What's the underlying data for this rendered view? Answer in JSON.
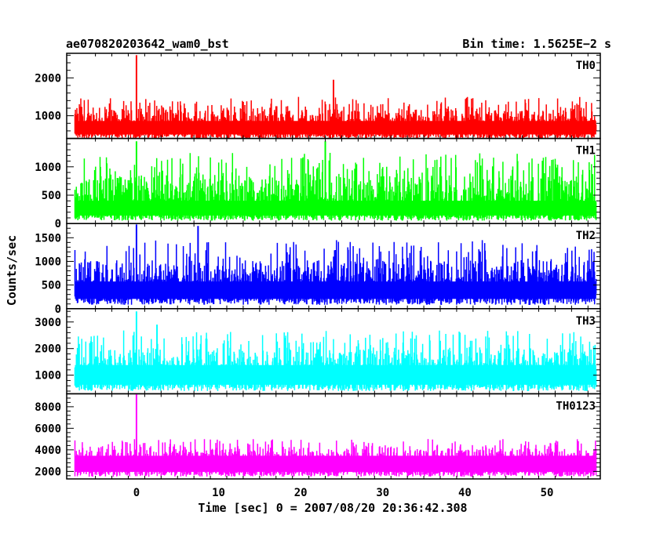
{
  "chart_data": {
    "type": "line",
    "title_left": "ae070820203642_wam0_bst",
    "title_right": "Bin time: 1.5625E−2 s",
    "xlabel": "Time [sec] 0 = 2007/08/20 20:36:42.308",
    "ylabel": "Counts/sec",
    "xlim": [
      -8.5,
      56.5
    ],
    "x_ticks": [
      0,
      10,
      20,
      30,
      40,
      50
    ],
    "x_tick_labels": [
      "0",
      "10",
      "20",
      "30",
      "40",
      "50"
    ],
    "grid": false,
    "legend": "none",
    "panels": [
      {
        "name": "TH0",
        "color": "#ff0000",
        "ylim": [
          400,
          2650
        ],
        "y_ticks": [
          1000,
          2000
        ],
        "y_tick_labels": [
          "1000",
          "2000"
        ],
        "baseline_low": 400,
        "mean": 750,
        "peak_typical": 1500,
        "spikes": [
          {
            "x": 0.0,
            "y": 2600
          },
          {
            "x": 24.0,
            "y": 1950
          }
        ]
      },
      {
        "name": "TH1",
        "color": "#00ff00",
        "ylim": [
          0,
          1500
        ],
        "y_ticks": [
          0,
          500,
          1000
        ],
        "y_tick_labels": [
          "0",
          "500",
          "1000"
        ],
        "baseline_low": 50,
        "mean": 350,
        "peak_typical": 1250,
        "spikes": [
          {
            "x": 0.0,
            "y": 1450
          },
          {
            "x": 23.0,
            "y": 1450
          }
        ]
      },
      {
        "name": "TH2",
        "color": "#0000ff",
        "ylim": [
          0,
          1800
        ],
        "y_ticks": [
          0,
          500,
          1000,
          1500
        ],
        "y_tick_labels": [
          "0",
          "500",
          "1000",
          "1500"
        ],
        "baseline_low": 80,
        "mean": 500,
        "peak_typical": 1450,
        "spikes": [
          {
            "x": 0.0,
            "y": 1780
          },
          {
            "x": 7.5,
            "y": 1750
          }
        ]
      },
      {
        "name": "TH3",
        "color": "#00ffff",
        "ylim": [
          300,
          3500
        ],
        "y_ticks": [
          1000,
          2000,
          3000
        ],
        "y_tick_labels": [
          "1000",
          "2000",
          "3000"
        ],
        "baseline_low": 400,
        "mean": 1200,
        "peak_typical": 2700,
        "spikes": [
          {
            "x": 0.0,
            "y": 3400
          },
          {
            "x": 2.5,
            "y": 2900
          }
        ]
      },
      {
        "name": "TH0123",
        "color": "#ff00ff",
        "ylim": [
          1300,
          9200
        ],
        "y_ticks": [
          2000,
          4000,
          6000,
          8000
        ],
        "y_tick_labels": [
          "2000",
          "4000",
          "6000",
          "8000"
        ],
        "baseline_low": 1500,
        "mean": 3000,
        "peak_typical": 5000,
        "spikes": [
          {
            "x": 0.0,
            "y": 9200
          }
        ]
      }
    ]
  }
}
